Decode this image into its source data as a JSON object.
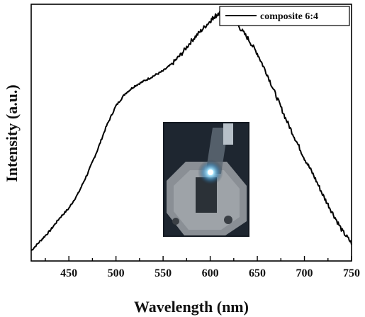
{
  "chart_data": {
    "type": "line",
    "xlabel": "Wavelength (nm)",
    "ylabel": "Intensity (a.u.)",
    "xlim": [
      410,
      750
    ],
    "xticks": [
      450,
      500,
      550,
      600,
      650,
      700,
      750
    ],
    "yticks_shown": false,
    "ylim": [
      0,
      1.0
    ],
    "grid": false,
    "legend_position": "top-right",
    "series": [
      {
        "name": "composite 6:4",
        "color": "#000000",
        "x": [
          410,
          420,
          430,
          440,
          450,
          460,
          470,
          480,
          490,
          500,
          510,
          520,
          530,
          540,
          550,
          560,
          570,
          580,
          590,
          600,
          605,
          610,
          615,
          620,
          630,
          640,
          650,
          660,
          670,
          680,
          690,
          700,
          710,
          720,
          730,
          740,
          750
        ],
        "y": [
          0.03,
          0.07,
          0.11,
          0.16,
          0.2,
          0.26,
          0.34,
          0.43,
          0.53,
          0.61,
          0.66,
          0.69,
          0.71,
          0.73,
          0.75,
          0.78,
          0.82,
          0.87,
          0.91,
          0.95,
          0.97,
          0.98,
          0.975,
          0.96,
          0.93,
          0.88,
          0.82,
          0.74,
          0.65,
          0.56,
          0.48,
          0.4,
          0.33,
          0.25,
          0.18,
          0.11,
          0.06
        ]
      }
    ]
  },
  "inset": {
    "description_icon": "photo-device-icon"
  }
}
